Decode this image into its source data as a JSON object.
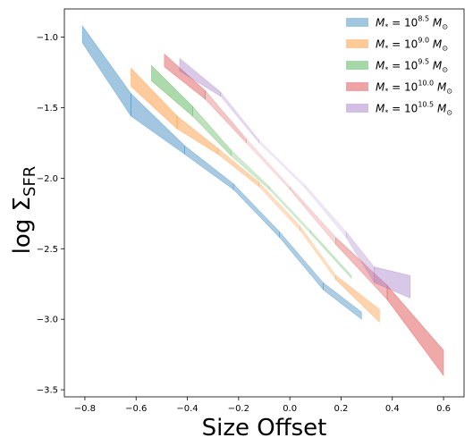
{
  "chart_data": {
    "type": "area",
    "title": "",
    "xlabel": "Size Offset",
    "ylabel_main": "log Σ",
    "ylabel_sub": "SFR",
    "xlim": [
      -0.88,
      0.68
    ],
    "ylim": [
      -3.55,
      -0.8
    ],
    "xticks": [
      -0.8,
      -0.6,
      -0.4,
      -0.2,
      0.0,
      0.2,
      0.4,
      0.6
    ],
    "xtick_labels": [
      "−0.8",
      "−0.6",
      "−0.4",
      "−0.2",
      "0.0",
      "0.2",
      "0.4",
      "0.6"
    ],
    "yticks": [
      -1.0,
      -1.5,
      -2.0,
      -2.5,
      -3.0,
      -3.5
    ],
    "ytick_labels": [
      "−1.0",
      "−1.5",
      "−2.0",
      "−2.5",
      "−3.0",
      "−3.5"
    ],
    "grid": false,
    "legend_position": "top-right",
    "series": [
      {
        "name": "M* = 10^8.5 M⊙",
        "legend_base": "M",
        "legend_sub": "*",
        "legend_mid": " = 10",
        "legend_sup": "8.5",
        "legend_unit": " M",
        "legend_unit_sub": "⊙",
        "color": "#1f77b4",
        "x": [
          -0.81,
          -0.62,
          -0.41,
          -0.22,
          -0.04,
          0.13,
          0.28
        ],
        "upper": [
          -0.92,
          -1.4,
          -1.77,
          -2.04,
          -2.38,
          -2.74,
          -2.95
        ],
        "lower": [
          -1.04,
          -1.56,
          -1.83,
          -2.08,
          -2.42,
          -2.79,
          -3.0
        ],
        "opacity": [
          0.42,
          0.42,
          0.4,
          0.38,
          0.36,
          0.36,
          0.38
        ]
      },
      {
        "name": "M* = 10^9.0 M⊙",
        "legend_base": "M",
        "legend_sub": "*",
        "legend_mid": " = 10",
        "legend_sup": "9.0",
        "legend_unit": " M",
        "legend_unit_sub": "⊙",
        "color": "#ff7f0e",
        "x": [
          -0.62,
          -0.44,
          -0.28,
          -0.12,
          0.04,
          0.18,
          0.35
        ],
        "upper": [
          -1.22,
          -1.56,
          -1.79,
          -2.03,
          -2.34,
          -2.69,
          -2.93
        ],
        "lower": [
          -1.35,
          -1.65,
          -1.83,
          -2.06,
          -2.37,
          -2.72,
          -3.02
        ],
        "opacity": [
          0.42,
          0.4,
          0.36,
          0.28,
          0.22,
          0.28,
          0.4
        ]
      },
      {
        "name": "M* = 10^9.5 M⊙",
        "legend_base": "M",
        "legend_sub": "*",
        "legend_mid": " = 10",
        "legend_sup": "9.5",
        "legend_unit": " M",
        "legend_unit_sub": "⊙",
        "color": "#2ca02c",
        "x": [
          -0.54,
          -0.38,
          -0.23,
          -0.08,
          0.08,
          0.24
        ],
        "upper": [
          -1.2,
          -1.49,
          -1.8,
          -2.06,
          -2.37,
          -2.69
        ],
        "lower": [
          -1.31,
          -1.56,
          -1.84,
          -2.08,
          -2.39,
          -2.71
        ],
        "opacity": [
          0.42,
          0.36,
          0.26,
          0.18,
          0.2,
          0.28
        ]
      },
      {
        "name": "M* = 10^10.0 M⊙",
        "legend_base": "M",
        "legend_sub": "*",
        "legend_mid": " = 10",
        "legend_sup": "10.0",
        "legend_unit": " M",
        "legend_unit_sub": "⊙",
        "color": "#d62728",
        "x": [
          -0.49,
          -0.33,
          -0.17,
          0.0,
          0.18,
          0.38,
          0.6
        ],
        "upper": [
          -1.12,
          -1.38,
          -1.72,
          -2.06,
          -2.42,
          -2.76,
          -3.22
        ],
        "lower": [
          -1.21,
          -1.44,
          -1.75,
          -2.08,
          -2.47,
          -2.86,
          -3.4
        ],
        "opacity": [
          0.42,
          0.34,
          0.18,
          0.12,
          0.26,
          0.38,
          0.42
        ]
      },
      {
        "name": "M* = 10^10.5 M⊙",
        "legend_base": "M",
        "legend_sub": "*",
        "legend_mid": " = 10",
        "legend_sup": "10.5",
        "legend_unit": " M",
        "legend_unit_sub": "⊙",
        "color": "#9467bd",
        "x": [
          -0.43,
          -0.27,
          -0.12,
          0.06,
          0.22,
          0.33,
          0.47
        ],
        "upper": [
          -1.15,
          -1.39,
          -1.73,
          -2.05,
          -2.38,
          -2.63,
          -2.69
        ],
        "lower": [
          -1.24,
          -1.42,
          -1.75,
          -2.07,
          -2.42,
          -2.74,
          -2.85
        ],
        "opacity": [
          0.38,
          0.32,
          0.16,
          0.1,
          0.22,
          0.34,
          0.4
        ]
      }
    ]
  }
}
